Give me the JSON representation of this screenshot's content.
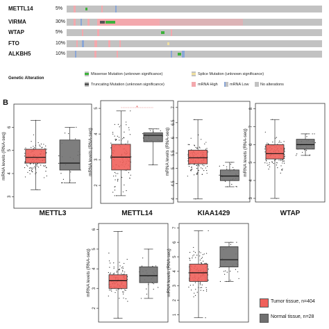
{
  "oncoprint": {
    "genes": [
      {
        "name": "METTL14",
        "pct": "5%"
      },
      {
        "name": "VIRMA",
        "pct": "30%"
      },
      {
        "name": "WTAP",
        "pct": "5%"
      },
      {
        "name": "FTO",
        "pct": "10%"
      },
      {
        "name": "ALKBH5",
        "pct": "10%"
      }
    ],
    "legend_title": "Genetic Alteration",
    "legend": [
      {
        "label": "Missense Mutation (unknown significance)",
        "color": "#3db23b"
      },
      {
        "label": "Splice Mutation (unknown significance)",
        "color": "#f0e0a0"
      },
      {
        "label": "Truncating Mutation (unknown significance)",
        "color": "#555555"
      },
      {
        "label": "mRNA High",
        "color": "#f3a8ad"
      },
      {
        "label": "mRNA Low",
        "color": "#8aa6d6"
      },
      {
        "label": "No alterations",
        "color": "#c2c2c2"
      }
    ]
  },
  "panel_label": "B",
  "chart_data": [
    {
      "type": "box",
      "title": "METTL3",
      "ylabel": "mRNA levels (RNA-seq)",
      "ylim": [
        2.5,
        7
      ],
      "ticks": [
        3,
        4,
        5,
        6
      ],
      "significant": false,
      "series": [
        {
          "name": "Tumor tissue",
          "n": 404,
          "min": 3.3,
          "q1": 4.45,
          "median": 4.7,
          "q3": 5.05,
          "max": 6.3
        },
        {
          "name": "Normal tissue",
          "n": 28,
          "min": 3.6,
          "q1": 4.15,
          "median": 4.45,
          "q3": 5.45,
          "max": 6.0
        }
      ]
    },
    {
      "type": "box",
      "title": "METTL14",
      "ylabel": "mRNA levels (RNA-seq)",
      "ylim": [
        1.3,
        5.3
      ],
      "ticks": [
        2,
        3,
        4,
        5
      ],
      "significant": true,
      "series": [
        {
          "name": "Tumor tissue",
          "n": 404,
          "min": 1.6,
          "q1": 2.6,
          "median": 3.1,
          "q3": 3.6,
          "max": 4.9
        },
        {
          "name": "Normal tissue",
          "n": 28,
          "min": 2.8,
          "q1": 3.7,
          "median": 3.95,
          "q3": 4.05,
          "max": 4.2
        }
      ]
    },
    {
      "type": "box",
      "title": "KIAA1429",
      "ylabel": "mRNA levels (RNA-seq)",
      "ylim": [
        3.9,
        7.2
      ],
      "ticks": [
        4.0,
        4.5,
        5.0,
        5.5,
        6.0,
        6.5,
        7.0
      ],
      "significant": false,
      "series": [
        {
          "name": "Tumor tissue",
          "n": 404,
          "min": 4.0,
          "q1": 5.15,
          "median": 5.35,
          "q3": 5.6,
          "max": 6.6
        },
        {
          "name": "Normal tissue",
          "n": 28,
          "min": 4.4,
          "q1": 4.6,
          "median": 4.75,
          "q3": 4.95,
          "max": 5.2
        }
      ]
    },
    {
      "type": "box",
      "title": "WTAP",
      "ylabel": "mRNA levels (RNA-seq)",
      "ylim": [
        2.8,
        8.3
      ],
      "ticks": [
        3,
        4,
        5,
        6,
        7,
        8
      ],
      "significant": false,
      "series": [
        {
          "name": "Tumor tissue",
          "n": 404,
          "min": 3.0,
          "q1": 5.2,
          "median": 5.5,
          "q3": 6.0,
          "max": 7.4
        },
        {
          "name": "Normal tissue",
          "n": 28,
          "min": 5.4,
          "q1": 5.75,
          "median": 6.0,
          "q3": 6.3,
          "max": 6.6
        }
      ]
    },
    {
      "type": "box",
      "title": "",
      "ylabel": "mRNA levels (RNA-seq)",
      "ylim": [
        1.3,
        6.3
      ],
      "ticks": [
        2,
        3,
        4,
        5,
        6
      ],
      "significant": false,
      "series": [
        {
          "name": "Tumor tissue",
          "n": 404,
          "min": 1.5,
          "q1": 3.0,
          "median": 3.4,
          "q3": 3.7,
          "max": 5.9
        },
        {
          "name": "Normal tissue",
          "n": 28,
          "min": 2.5,
          "q1": 3.3,
          "median": 3.65,
          "q3": 4.1,
          "max": 5.0
        }
      ]
    },
    {
      "type": "box",
      "title": "",
      "ylabel": "mRNA levels (RNA-seq)",
      "ylim": [
        0.5,
        7.3
      ],
      "ticks": [
        1,
        2,
        3,
        4,
        5,
        6,
        7
      ],
      "significant": false,
      "series": [
        {
          "name": "Tumor tissue",
          "n": 404,
          "min": 0.8,
          "q1": 3.3,
          "median": 3.9,
          "q3": 4.5,
          "max": 6.8
        },
        {
          "name": "Normal tissue",
          "n": 28,
          "min": 3.3,
          "q1": 4.3,
          "median": 4.8,
          "q3": 5.7,
          "max": 6.0
        }
      ]
    }
  ],
  "chart_legend": [
    {
      "label": "Tumor tissue, n=404",
      "color": "#f0615b"
    },
    {
      "label": "Normal tissue, n=28",
      "color": "#707070"
    }
  ]
}
